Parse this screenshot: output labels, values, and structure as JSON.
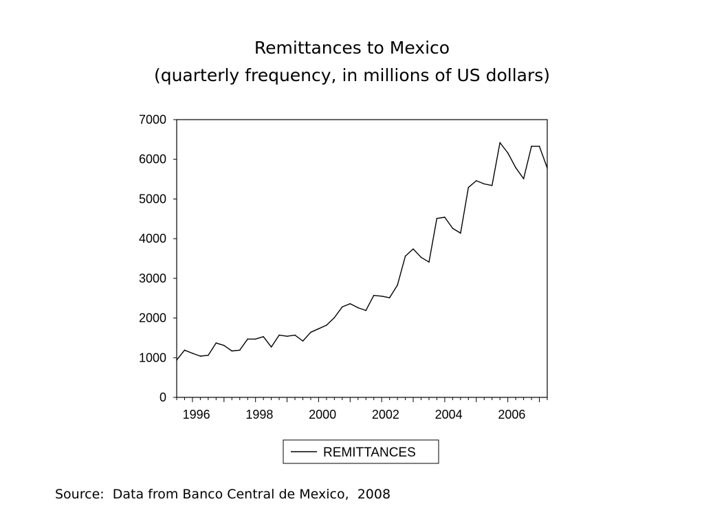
{
  "title": "Remittances  to Mexico",
  "subtitle": "(quarterly frequency,  in millions of US dollars)",
  "source": "Source:  Data from Banco Central de Mexico,  2008",
  "chart_data": {
    "type": "line",
    "title": "Remittances  to Mexico",
    "subtitle": "(quarterly frequency,  in millions of US dollars)",
    "xlabel": "",
    "ylabel": "",
    "x_start": 1995.5,
    "x_step": 0.25,
    "xlim": [
      1995.5,
      2007.25
    ],
    "ylim": [
      0,
      7000
    ],
    "yticks": [
      0,
      1000,
      2000,
      3000,
      4000,
      5000,
      6000,
      7000
    ],
    "xtick_labels": [
      {
        "year": 1996,
        "label": "1996"
      },
      {
        "year": 1998,
        "label": "1998"
      },
      {
        "year": 2000,
        "label": "2000"
      },
      {
        "year": 2002,
        "label": "2002"
      },
      {
        "year": 2004,
        "label": "2004"
      },
      {
        "year": 2006,
        "label": "2006"
      }
    ],
    "grid": false,
    "legend_position": "bottom-center",
    "series": [
      {
        "name": "REMITTANCES",
        "color": "#000000",
        "values": [
          940,
          1190,
          1110,
          1040,
          1060,
          1370,
          1310,
          1170,
          1190,
          1470,
          1470,
          1530,
          1270,
          1570,
          1540,
          1570,
          1420,
          1640,
          1730,
          1820,
          2010,
          2280,
          2360,
          2260,
          2190,
          2570,
          2550,
          2510,
          2830,
          3560,
          3740,
          3530,
          3410,
          4510,
          4540,
          4260,
          4140,
          5290,
          5460,
          5380,
          5340,
          6420,
          6160,
          5790,
          5510,
          6330,
          6330,
          5780
        ]
      }
    ]
  }
}
